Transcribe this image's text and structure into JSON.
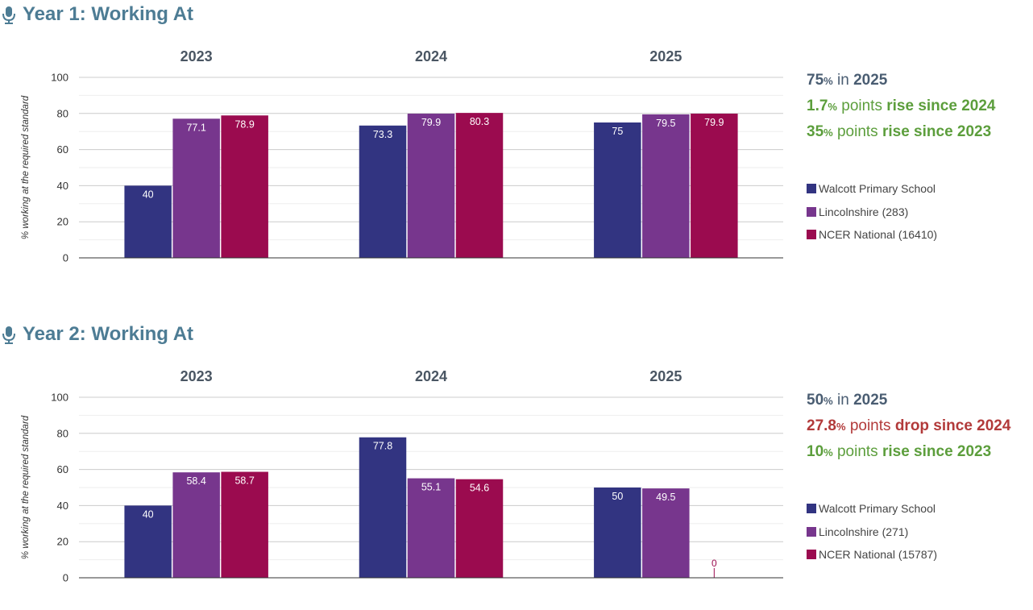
{
  "colors": {
    "school": "#323481",
    "county": "#77368d",
    "national": "#9b0b4f",
    "title": "#4d7c94",
    "neutral": "#4a5d72",
    "rise": "#5c9e3c",
    "drop": "#b23a3a",
    "grid": "#cccccc"
  },
  "panels": [
    {
      "title": "Year 1: Working At",
      "stats": [
        {
          "num": "75",
          "pct": "%",
          "text": " in ",
          "em": "2025",
          "tone": "neutral"
        },
        {
          "num": "1.7",
          "pct": "%",
          "text": " points ",
          "em": "rise since 2024",
          "tone": "rise"
        },
        {
          "num": "35",
          "pct": "%",
          "text": " points ",
          "em": "rise since 2023",
          "tone": "rise"
        }
      ],
      "legend": [
        "Walcott Primary School",
        "Lincolnshire (283)",
        "NCER National (16410)"
      ]
    },
    {
      "title": "Year 2: Working At",
      "stats": [
        {
          "num": "50",
          "pct": "%",
          "text": " in ",
          "em": "2025",
          "tone": "neutral"
        },
        {
          "num": "27.8",
          "pct": "%",
          "text": " points ",
          "em": "drop since 2024",
          "tone": "drop"
        },
        {
          "num": "10",
          "pct": "%",
          "text": " points ",
          "em": "rise since 2023",
          "tone": "rise"
        }
      ],
      "legend": [
        "Walcott Primary School",
        "Lincolnshire (271)",
        "NCER National (15787)"
      ]
    }
  ],
  "chart_data": [
    {
      "type": "bar",
      "categories": [
        "2023",
        "2024",
        "2025"
      ],
      "series": [
        {
          "name": "Walcott Primary School",
          "values": [
            40,
            73.3,
            75
          ]
        },
        {
          "name": "Lincolnshire (283)",
          "values": [
            77.1,
            79.9,
            79.5
          ]
        },
        {
          "name": "NCER National (16410)",
          "values": [
            78.9,
            80.3,
            79.9
          ]
        }
      ],
      "ylabel": "% working at the required standard",
      "ylim": [
        0,
        100
      ],
      "yticks": [
        0,
        20,
        40,
        60,
        80,
        100
      ],
      "grid": true,
      "legend_position": "right"
    },
    {
      "type": "bar",
      "categories": [
        "2023",
        "2024",
        "2025"
      ],
      "series": [
        {
          "name": "Walcott Primary School",
          "values": [
            40,
            77.8,
            50
          ]
        },
        {
          "name": "Lincolnshire (271)",
          "values": [
            58.4,
            55.1,
            49.5
          ]
        },
        {
          "name": "NCER National (15787)",
          "values": [
            58.7,
            54.6,
            0
          ]
        }
      ],
      "ylabel": "% working at the required standard",
      "ylim": [
        0,
        100
      ],
      "yticks": [
        0,
        20,
        40,
        60,
        80,
        100
      ],
      "grid": true,
      "legend_position": "right"
    }
  ]
}
